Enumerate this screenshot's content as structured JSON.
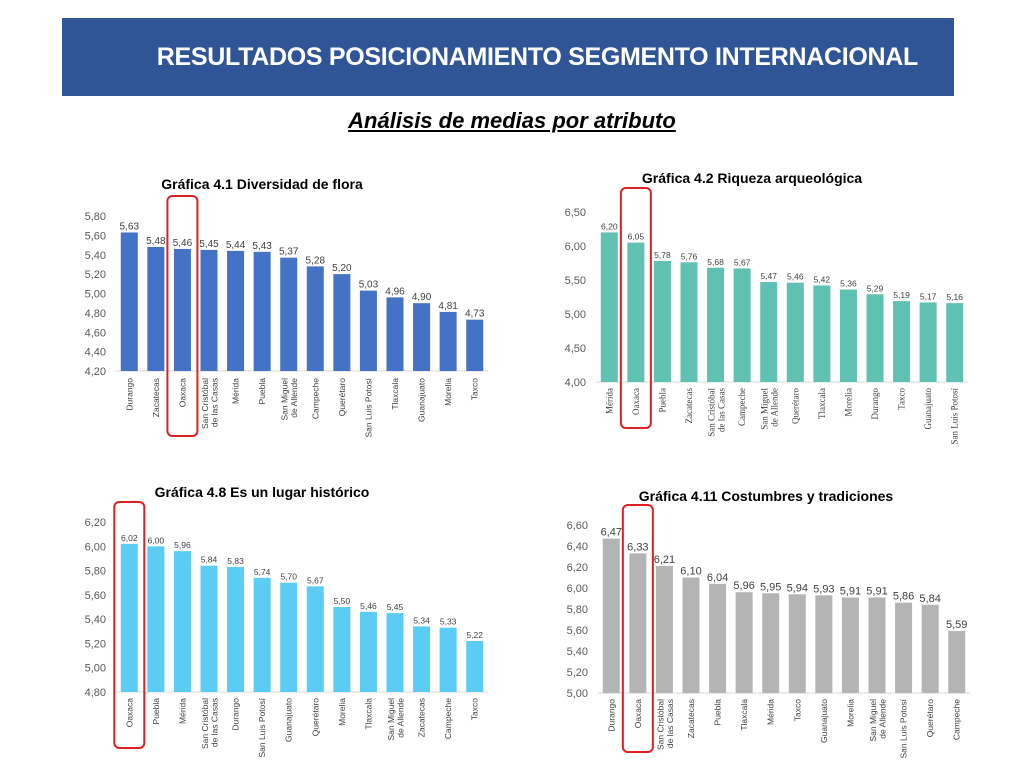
{
  "header": {
    "title": "RESULTADOS POSICIONAMIENTO SEGMENTO INTERNACIONAL",
    "subtitle": "Análisis de medias por atributo"
  },
  "colors": {
    "banner": "#2f5597",
    "highlight": "#e02020",
    "flora": "#4472c4",
    "arqueologia": "#5fc1b1",
    "historico": "#5bcdf5",
    "costumbres": "#b4b4b4"
  },
  "chart_data": [
    {
      "id": "c1",
      "type": "bar",
      "title": "Gráfica 4.1 Diversidad de flora",
      "categories": [
        "Durango",
        "Zacatecas",
        "Oaxaca",
        "San Cristóbal de las Casas",
        "Mérida",
        "Puebla",
        "San Miguel de Allende",
        "Campeche",
        "Querétaro",
        "San Luis Potosí",
        "Tlaxcala",
        "Guanajuato",
        "Morelia",
        "Taxco"
      ],
      "values": [
        5.63,
        5.48,
        5.46,
        5.45,
        5.44,
        5.43,
        5.37,
        5.28,
        5.2,
        5.03,
        4.96,
        4.9,
        4.81,
        4.73
      ],
      "value_labels": [
        "5,63",
        "5,48",
        "5,46",
        "5,45",
        "5,44",
        "5,43",
        "5,37",
        "5,28",
        "5,20",
        "5,03",
        "4,96",
        "4,90",
        "4,81",
        "4,73"
      ],
      "ylim": [
        4.2,
        5.8
      ],
      "yticks": [
        "4,20",
        "4,40",
        "4,60",
        "4,80",
        "5,00",
        "5,20",
        "5,40",
        "5,60",
        "5,80"
      ],
      "highlight_category": "Oaxaca",
      "color": "#4472c4"
    },
    {
      "id": "c2",
      "type": "bar",
      "title": "Gráfica 4.2 Riqueza arqueológica",
      "categories": [
        "Mérida",
        "Oaxaca",
        "Puebla",
        "Zacatecas",
        "San Cristóbal de las Casas",
        "Campeche",
        "San Miguel de Allende",
        "Querétaro",
        "Tlaxcala",
        "Morelia",
        "Durango",
        "Taxco",
        "Guanajuato",
        "San Luis Potosí"
      ],
      "values": [
        6.2,
        6.05,
        5.78,
        5.76,
        5.68,
        5.67,
        5.47,
        5.46,
        5.42,
        5.36,
        5.29,
        5.19,
        5.17,
        5.16
      ],
      "value_labels": [
        "6,20",
        "6,05",
        "5,78",
        "5,76",
        "5,68",
        "5,67",
        "5,47",
        "5,46",
        "5,42",
        "5,36",
        "5,29",
        "5,19",
        "5,17",
        "5,16"
      ],
      "ylim": [
        4.0,
        6.5
      ],
      "yticks": [
        "4,00",
        "4,50",
        "5,00",
        "5,50",
        "6,00",
        "6,50"
      ],
      "highlight_category": "Oaxaca",
      "color": "#5fc1b1"
    },
    {
      "id": "c3",
      "type": "bar",
      "title": "Gráfica 4.8 Es un lugar histórico",
      "categories": [
        "Oaxaca",
        "Puebla",
        "Mérida",
        "San Cristóbal de las Casas",
        "Durango",
        "San Luis Potosí",
        "Guanajuato",
        "Querétaro",
        "Morelia",
        "Tlaxcala",
        "San Miguel de Allende",
        "Zacatecas",
        "Campeche",
        "Taxco"
      ],
      "values": [
        6.02,
        6.0,
        5.96,
        5.84,
        5.83,
        5.74,
        5.7,
        5.67,
        5.5,
        5.46,
        5.45,
        5.34,
        5.33,
        5.22
      ],
      "value_labels": [
        "6,02",
        "6,00",
        "5,96",
        "5,84",
        "5,83",
        "5,74",
        "5,70",
        "5,67",
        "5,50",
        "5,46",
        "5,45",
        "5,34",
        "5,33",
        "5,22"
      ],
      "ylim": [
        4.8,
        6.2
      ],
      "yticks": [
        "4,80",
        "5,00",
        "5,20",
        "5,40",
        "5,60",
        "5,80",
        "6,00",
        "6,20"
      ],
      "highlight_category": "Oaxaca",
      "color": "#5bcdf5"
    },
    {
      "id": "c4",
      "type": "bar",
      "title": "Gráfica 4.11 Costumbres y tradiciones",
      "categories": [
        "Durango",
        "Oaxaca",
        "San Cristóbal de las Casas",
        "Zacatecas",
        "Puebla",
        "Tlaxcala",
        "Mérida",
        "Taxco",
        "Guanajuato",
        "Morelia",
        "San Miguel de Allende",
        "San Luis Potosí",
        "Querétaro",
        "Campeche"
      ],
      "values": [
        6.47,
        6.33,
        6.21,
        6.1,
        6.04,
        5.96,
        5.95,
        5.94,
        5.93,
        5.91,
        5.91,
        5.86,
        5.84,
        5.59
      ],
      "value_labels": [
        "6,47",
        "6,33",
        "6,21",
        "6,10",
        "6,04",
        "5,96",
        "5,95",
        "5,94",
        "5,93",
        "5,91",
        "5,91",
        "5,86",
        "5,84",
        "5,59"
      ],
      "ylim": [
        5.0,
        6.6
      ],
      "yticks": [
        "5,00",
        "5,20",
        "5,40",
        "5,60",
        "5,80",
        "6,00",
        "6,20",
        "6,40",
        "6,60"
      ],
      "highlight_category": "Oaxaca",
      "color": "#b4b4b4"
    }
  ]
}
